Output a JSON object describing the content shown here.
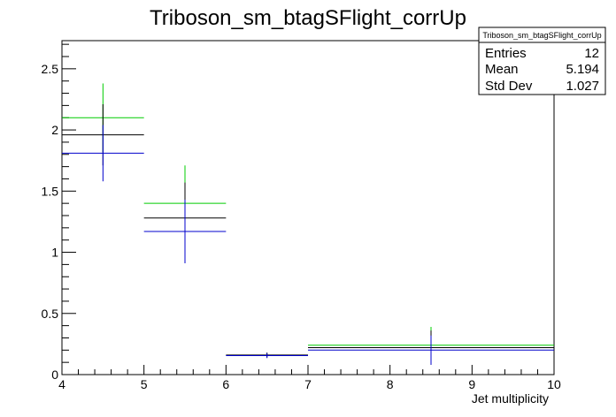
{
  "chart_data": {
    "type": "scatter",
    "title": "Triboson_sm_btagSFlight_corrUp",
    "xlabel": "Jet multiplicity",
    "ylabel": "",
    "xlim": [
      4,
      10
    ],
    "ylim": [
      0,
      2.73
    ],
    "x_ticks": [
      4,
      5,
      6,
      7,
      8,
      9,
      10
    ],
    "y_ticks": [
      0,
      0.5,
      1,
      1.5,
      2,
      2.5
    ],
    "y_tick_labels": [
      "0",
      "0.5",
      "1",
      "1.5",
      "2",
      "2.5"
    ],
    "grid": false,
    "stats_box": {
      "name": "Triboson_sm_btagSFlight_corrUp",
      "rows": [
        {
          "label": "Entries",
          "value": "12"
        },
        {
          "label": "Mean",
          "value": "5.194"
        },
        {
          "label": "Std Dev",
          "value": "1.027"
        }
      ]
    },
    "series": [
      {
        "color": "#00cc00",
        "bins": [
          {
            "xlow": 4,
            "xhigh": 5,
            "y": 2.1,
            "err": 0.28
          },
          {
            "xlow": 5,
            "xhigh": 6,
            "y": 1.4,
            "err": 0.31
          },
          {
            "xlow": 7,
            "xhigh": 10,
            "y": 0.24,
            "err": 0.15
          }
        ]
      },
      {
        "color": "#000000",
        "bins": [
          {
            "xlow": 4,
            "xhigh": 5,
            "y": 1.96,
            "err": 0.25
          },
          {
            "xlow": 5,
            "xhigh": 6,
            "y": 1.28,
            "err": 0.29
          },
          {
            "xlow": 6,
            "xhigh": 7,
            "y": 0.16,
            "err": 0.02
          },
          {
            "xlow": 7,
            "xhigh": 10,
            "y": 0.22,
            "err": 0.14
          }
        ]
      },
      {
        "color": "#0000cc",
        "bins": [
          {
            "xlow": 4,
            "xhigh": 5,
            "y": 1.81,
            "err": 0.23
          },
          {
            "xlow": 5,
            "xhigh": 6,
            "y": 1.17,
            "err": 0.26
          },
          {
            "xlow": 6,
            "xhigh": 7,
            "y": 0.155,
            "err": 0.02
          },
          {
            "xlow": 7,
            "xhigh": 10,
            "y": 0.2,
            "err": 0.12
          }
        ]
      }
    ]
  }
}
